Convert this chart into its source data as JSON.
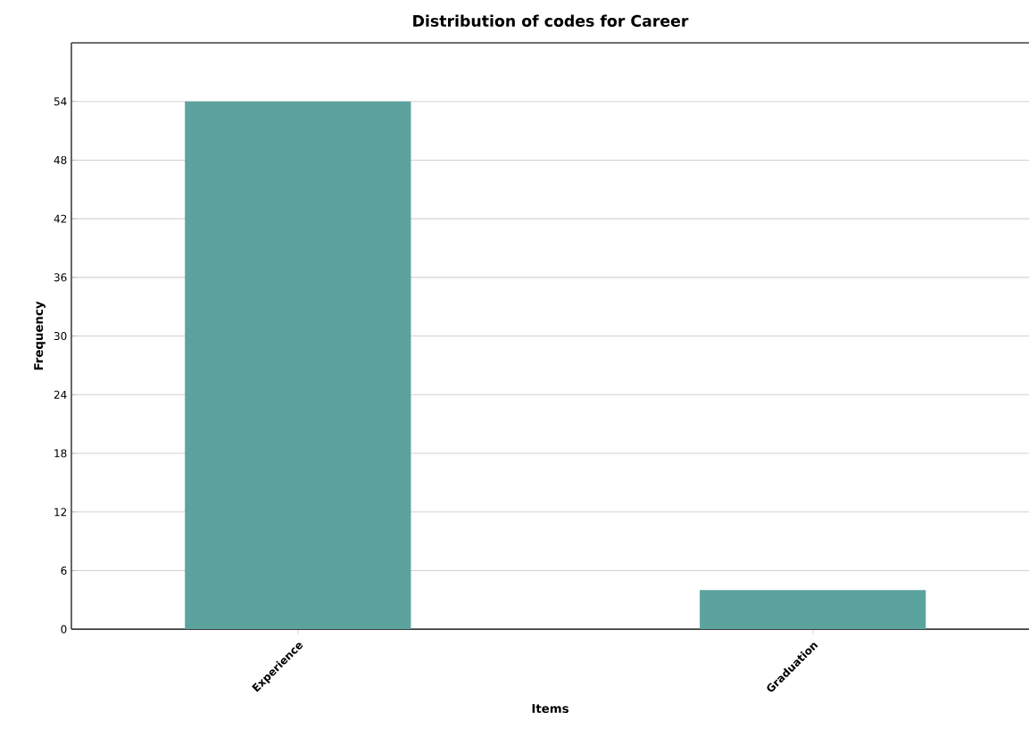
{
  "chart_data": {
    "type": "bar",
    "title": "Distribution of codes for Career",
    "xlabel": "Items",
    "ylabel": "Frequency",
    "categories": [
      "Experience",
      "Graduation"
    ],
    "values": [
      54,
      4
    ],
    "color": "#5ca39e",
    "ylim": [
      0,
      60
    ],
    "yticks": [
      0,
      6,
      12,
      18,
      24,
      30,
      36,
      42,
      48,
      54
    ],
    "grid": "y"
  }
}
